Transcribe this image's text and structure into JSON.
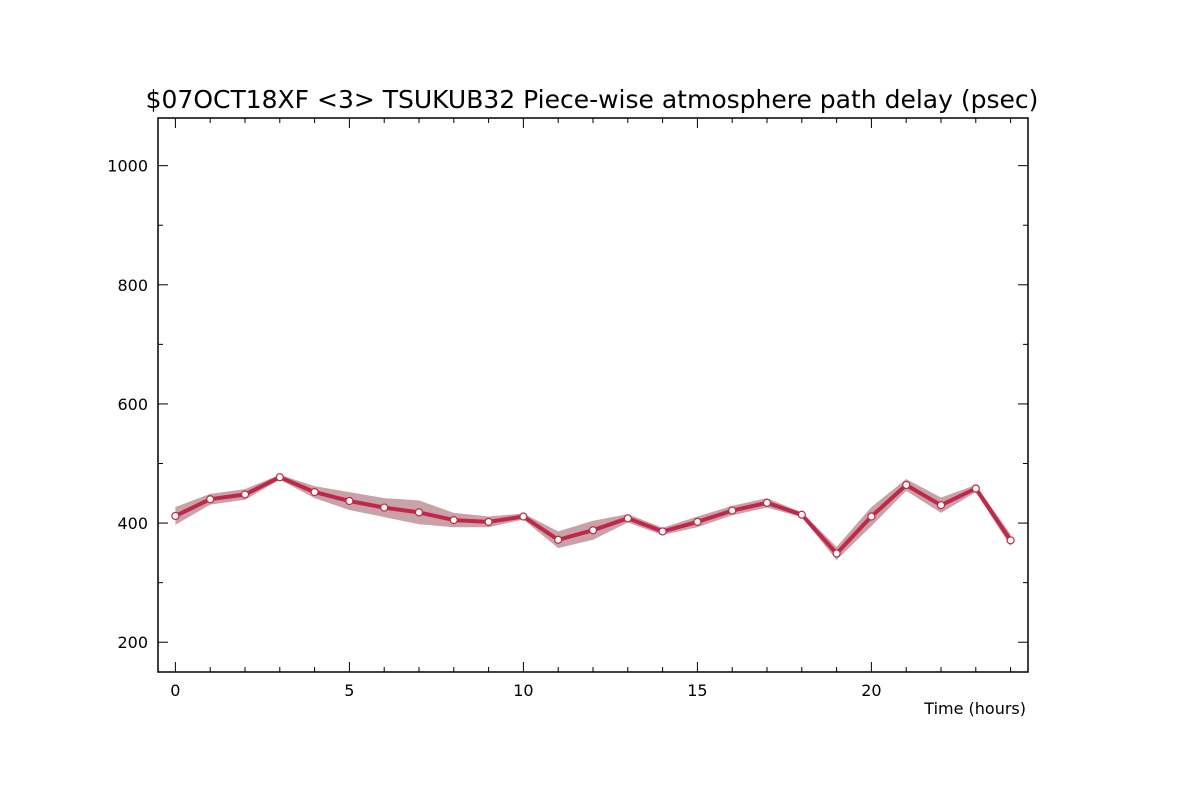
{
  "chart_data": {
    "type": "line",
    "title": "$07OCT18XF <3>  TSUKUB32  Piece-wise atmosphere path delay (psec)",
    "xlabel": "Time (hours)",
    "ylabel": "",
    "xlim": [
      -0.5,
      24.5
    ],
    "ylim": [
      150,
      1080
    ],
    "x_ticks": [
      0,
      5,
      10,
      15,
      20
    ],
    "x_tick_labels": [
      "0",
      "5",
      "10",
      "15",
      "20"
    ],
    "y_ticks": [
      200,
      400,
      600,
      800,
      1000
    ],
    "y_tick_labels": [
      "200",
      "400",
      "600",
      "800",
      "1000"
    ],
    "grid": false,
    "legend": "none",
    "colors": {
      "line": "#c0284a",
      "band": "#c9a2a8",
      "marker_fill": "#ffffff",
      "axis": "#000000"
    },
    "series": [
      {
        "x": [
          0,
          1,
          2,
          3,
          4,
          5,
          6,
          7,
          8,
          9,
          10,
          11,
          12,
          13,
          14,
          15,
          16,
          17,
          18,
          19,
          20,
          21,
          22,
          23,
          24
        ],
        "values": [
          412,
          440,
          448,
          477,
          452,
          437,
          426,
          418,
          405,
          402,
          411,
          372,
          388,
          408,
          386,
          402,
          421,
          434,
          414,
          349,
          411,
          464,
          430,
          458,
          371
        ],
        "band_upper": [
          427,
          449,
          457,
          481,
          462,
          452,
          442,
          438,
          417,
          411,
          416,
          386,
          404,
          415,
          392,
          411,
          429,
          442,
          418,
          360,
          427,
          474,
          443,
          464,
          381
        ],
        "band_lower": [
          397,
          431,
          439,
          473,
          442,
          422,
          410,
          398,
          393,
          393,
          406,
          358,
          372,
          401,
          380,
          393,
          413,
          426,
          410,
          338,
          395,
          454,
          417,
          452,
          361
        ]
      }
    ]
  }
}
